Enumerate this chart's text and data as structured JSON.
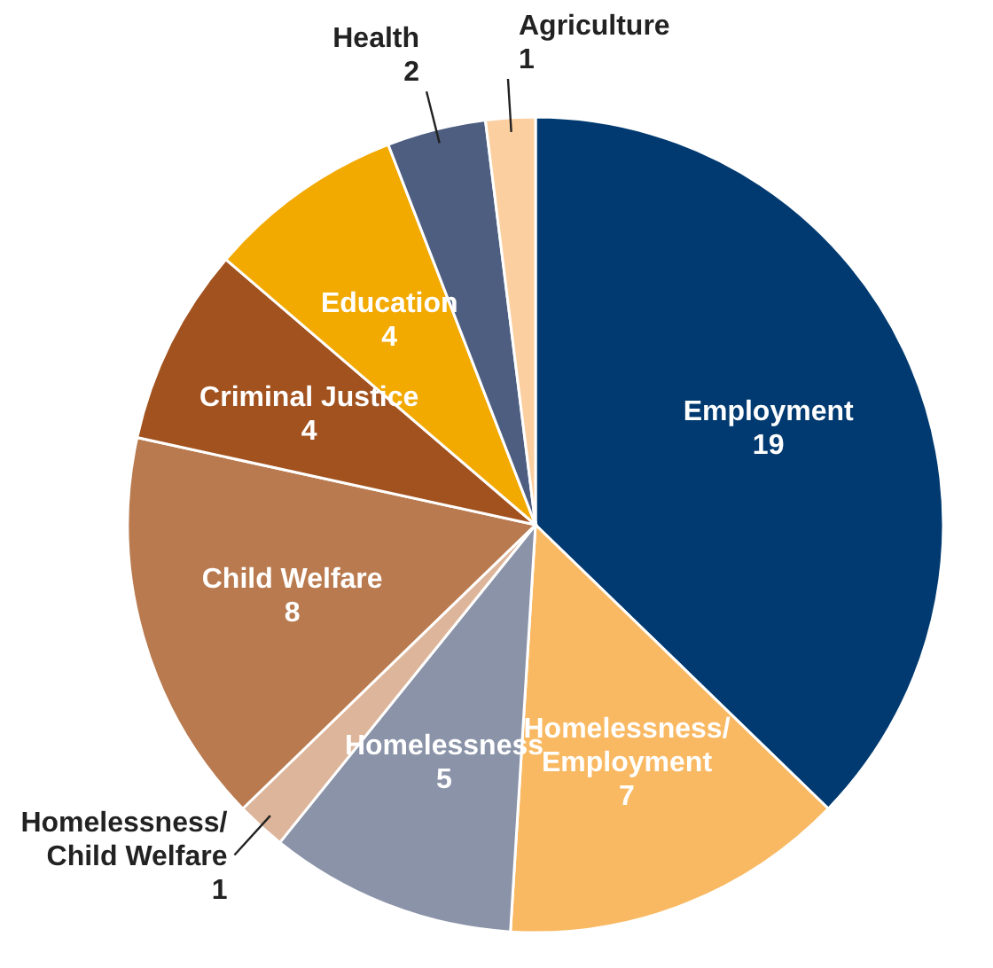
{
  "chart_data": {
    "type": "pie",
    "categories": [
      "Employment",
      "Homelessness/Employment",
      "Homelessness",
      "Homelessness/Child Welfare",
      "Child Welfare",
      "Criminal Justice",
      "Education",
      "Health",
      "Agriculture"
    ],
    "values": [
      19,
      7,
      5,
      1,
      8,
      4,
      4,
      2,
      1
    ],
    "colors": [
      "#003a70",
      "#f9b963",
      "#8a93a8",
      "#ddb59a",
      "#b97a4f",
      "#a2521e",
      "#f2a900",
      "#4d5e80",
      "#fbcf9f"
    ],
    "data_labels": true
  }
}
